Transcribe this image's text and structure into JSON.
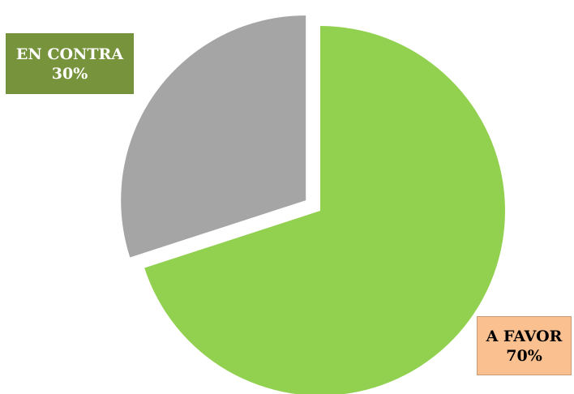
{
  "chart_data": {
    "type": "pie",
    "title": "",
    "slices": [
      {
        "label": "A FAVOR",
        "value": 70,
        "value_label": "70%",
        "color": "#92d050"
      },
      {
        "label": "EN CONTRA",
        "value": 30,
        "value_label": "30%",
        "color": "#a5a5a5"
      }
    ],
    "callouts": [
      {
        "slice": "EN CONTRA",
        "box_color": "#77933c",
        "text_color": "#ffffff"
      },
      {
        "slice": "A FAVOR",
        "box_color": "#fac090",
        "text_color": "#000000"
      }
    ],
    "exploded": true,
    "legend": "none"
  }
}
